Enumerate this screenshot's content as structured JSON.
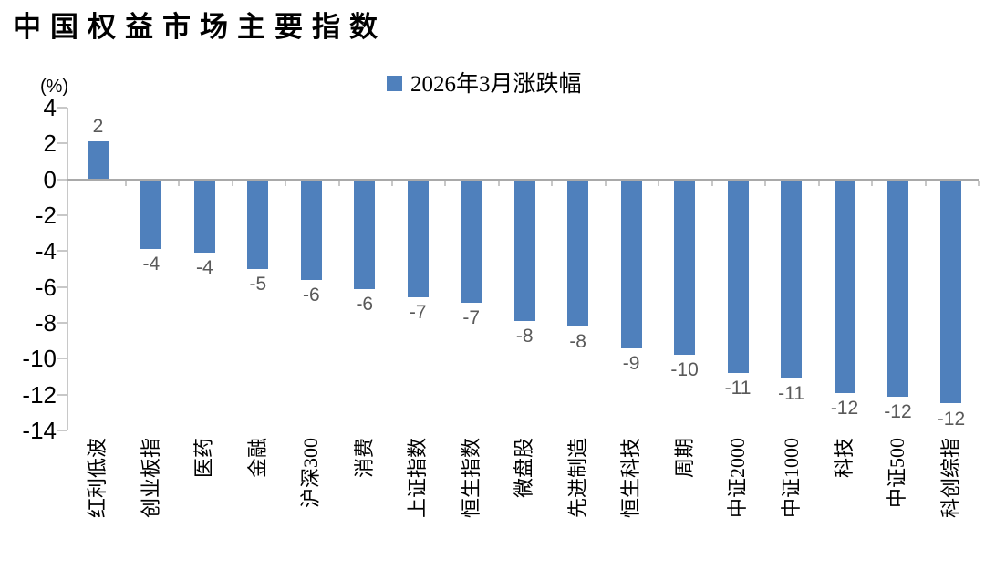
{
  "title": "中国权益市场主要指数",
  "axis_unit_label": "(%)",
  "legend": {
    "items": [
      {
        "label": "2026年3月涨跌幅",
        "color": "#4F80BC"
      }
    ]
  },
  "chart_data": {
    "type": "bar",
    "title": "中国权益市场主要指数",
    "unit": "%",
    "legend": [
      "2026年3月涨跌幅"
    ],
    "legend_position": "top-center",
    "categories": [
      "红利低波",
      "创业板指",
      "医药",
      "金融",
      "沪深300",
      "消费",
      "上证指数",
      "恒生指数",
      "微盘股",
      "先进制造",
      "恒生科技",
      "周期",
      "中证2000",
      "中证1000",
      "科技",
      "中证500",
      "科创综指"
    ],
    "values": [
      2.1,
      -3.9,
      -4.1,
      -5.0,
      -5.6,
      -6.1,
      -6.6,
      -6.9,
      -7.9,
      -8.2,
      -9.4,
      -9.8,
      -10.8,
      -11.1,
      -11.9,
      -12.1,
      -12.5
    ],
    "data_labels": [
      "2",
      "-4",
      "-4",
      "-5",
      "-6",
      "-6",
      "-7",
      "-7",
      "-8",
      "-8",
      "-9",
      "-10",
      "-11",
      "-11",
      "-12",
      "-12",
      "-12"
    ],
    "ylim": [
      -14,
      4
    ],
    "yticks": [
      4,
      2,
      0,
      -2,
      -4,
      -6,
      -8,
      -10,
      -12,
      -14
    ],
    "ylabel": "(%)",
    "xlabel": "",
    "grid": false,
    "zero_line": true,
    "bar_color": "#4F80BC"
  },
  "colors": {
    "bar": "#4F80BC",
    "axis": "#C8C8C8",
    "zero_line": "#A9A9A9",
    "value_label": "#595959",
    "text": "#000000",
    "background": "#FFFFFF"
  }
}
